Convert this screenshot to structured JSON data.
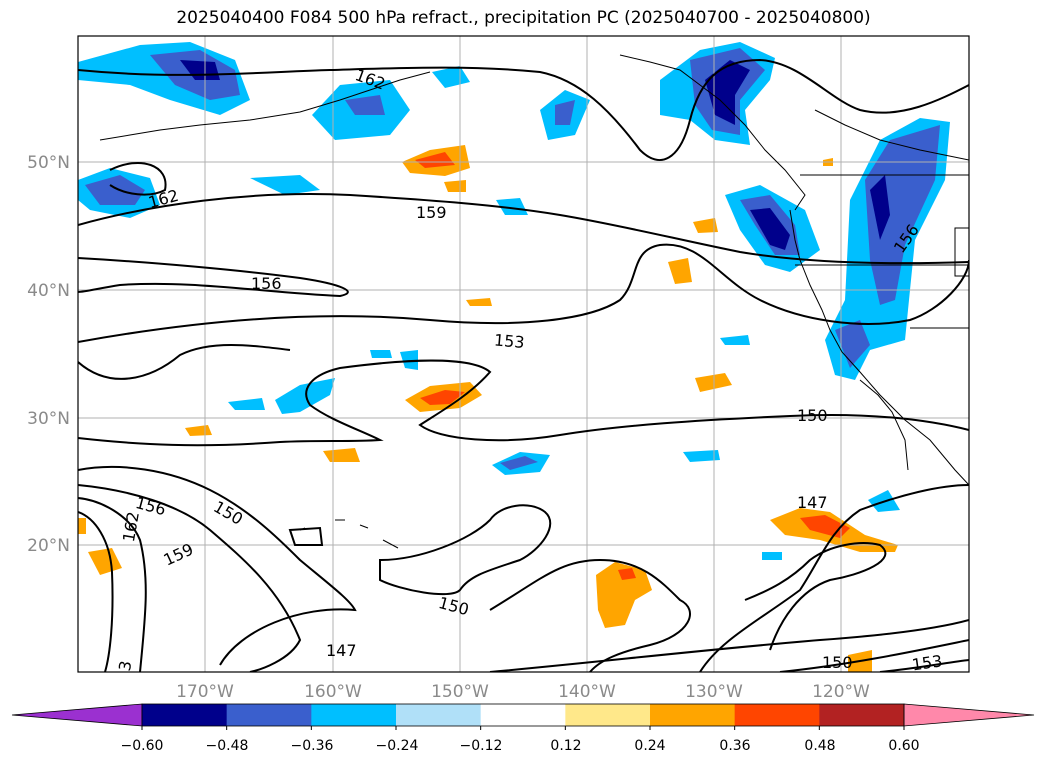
{
  "title": "2025040400 F084 500 hPa refract., precipitation PC (2025040700 - 2025040800)",
  "axes": {
    "lat_labels": [
      "50°N",
      "40°N",
      "30°N",
      "20°N"
    ],
    "lon_labels": [
      "170°W",
      "160°W",
      "150°W",
      "140°W",
      "130°W",
      "120°W"
    ]
  },
  "colorbar": {
    "colors": [
      "#9b30d0",
      "#00008b",
      "#3a5fcd",
      "#00bfff",
      "#b0e0f8",
      "#ffffff",
      "#ffe88a",
      "#ffa500",
      "#ff4500",
      "#b22222",
      "#ff88aa"
    ],
    "tick_labels": [
      "−0.60",
      "−0.48",
      "−0.36",
      "−0.24",
      "−0.12",
      "0.12",
      "0.24",
      "0.36",
      "0.48",
      "0.60"
    ]
  },
  "contour_labels": [
    "162",
    "162",
    "159",
    "156",
    "153",
    "150",
    "147",
    "156",
    "150",
    "159",
    "162",
    "150",
    "147",
    "150",
    "153",
    "156",
    "3"
  ]
}
